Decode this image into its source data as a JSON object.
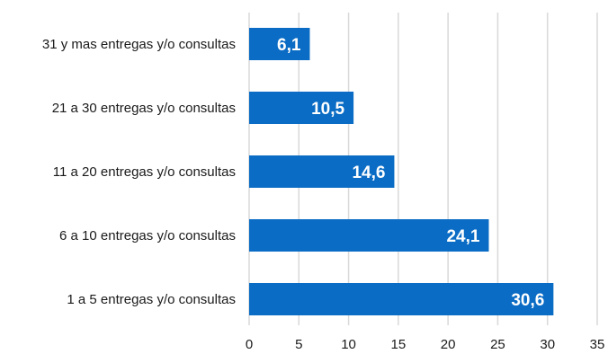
{
  "chart_data": {
    "type": "bar",
    "orientation": "horizontal",
    "categories": [
      "31 y mas entregas y/o consultas",
      "21 a 30 entregas y/o consultas",
      "11 a 20 entregas y/o consultas",
      "6 a 10 entregas y/o consultas",
      "1 a 5 entregas y/o consultas"
    ],
    "values": [
      6.1,
      10.5,
      14.6,
      24.1,
      30.6
    ],
    "value_labels": [
      "6,1",
      "10,5",
      "14,6",
      "24,1",
      "30,6"
    ],
    "title": "",
    "xlabel": "",
    "ylabel": "",
    "xlim": [
      0,
      35
    ],
    "x_ticks": [
      "0",
      "5",
      "10",
      "15",
      "20",
      "25",
      "30",
      "35"
    ],
    "grid": "vertical",
    "legend": "none",
    "bar_color": "#0a6cc4",
    "grid_color": "#d9d9d9"
  }
}
